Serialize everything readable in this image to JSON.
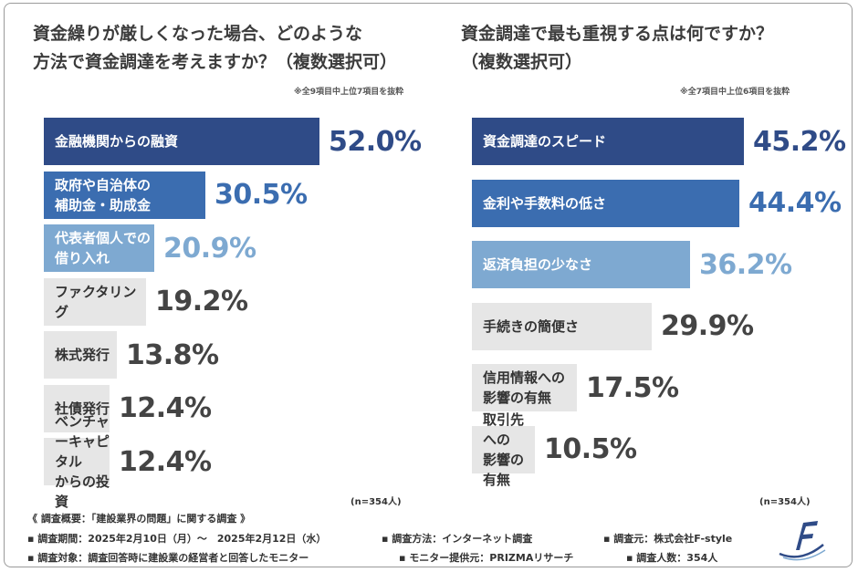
{
  "left_panel": {
    "title": "資金繰りが厳しくなった場合、どのような\n方法で資金調達を考えますか？（複数選択可）",
    "note": "※全9項目中上位7項目を抜粋",
    "n_label": "(n=354人)"
  },
  "right_panel": {
    "title": "資金調達で最も重視する点は何ですか？\n（複数選択可）",
    "note": "※全7項目中上位6項目を抜粋",
    "n_label": "(n=354人)"
  },
  "chart_data": [
    {
      "type": "bar",
      "orientation": "horizontal",
      "categories": [
        "金融機関からの融資",
        "政府や自治体の\n補助金・助成金",
        "代表者個人での\n借り入れ",
        "ファクタリング",
        "株式発行",
        "社債発行",
        "ベンチャーキャピタル\nからの投資"
      ],
      "values": [
        52.0,
        30.5,
        20.9,
        19.2,
        13.8,
        12.4,
        12.4
      ],
      "value_labels": [
        "52.0%",
        "30.5%",
        "20.9%",
        "19.2%",
        "13.8%",
        "12.4%",
        "12.4%"
      ],
      "unit": "%",
      "xlim": [
        0,
        52
      ],
      "grid": false,
      "colors": [
        "#2f4b87",
        "#3b6db0",
        "#7ea9d1",
        "#e6e6e6",
        "#e6e6e6",
        "#e6e6e6",
        "#e6e6e6"
      ],
      "value_colors": [
        "#2f4b87",
        "#3b6db0",
        "#7ea9d1",
        "#444444",
        "#444444",
        "#444444",
        "#444444"
      ],
      "label_colors": [
        "#ffffff",
        "#ffffff",
        "#ffffff",
        "#333333",
        "#333333",
        "#333333",
        "#333333"
      ]
    },
    {
      "type": "bar",
      "orientation": "horizontal",
      "categories": [
        "資金調達のスピード",
        "金利や手数料の低さ",
        "返済負担の少なさ",
        "手続きの簡便さ",
        "信用情報への\n影響の有無",
        "取引先への\n影響の有無"
      ],
      "values": [
        45.2,
        44.4,
        36.2,
        29.9,
        17.5,
        10.5
      ],
      "value_labels": [
        "45.2%",
        "44.4%",
        "36.2%",
        "29.9%",
        "17.5%",
        "10.5%"
      ],
      "unit": "%",
      "xlim": [
        0,
        45.2
      ],
      "grid": false,
      "colors": [
        "#2f4b87",
        "#3b6db0",
        "#7ea9d1",
        "#e6e6e6",
        "#e6e6e6",
        "#e6e6e6"
      ],
      "value_colors": [
        "#2f4b87",
        "#3b6db0",
        "#7ea9d1",
        "#444444",
        "#444444",
        "#444444"
      ],
      "label_colors": [
        "#ffffff",
        "#ffffff",
        "#ffffff",
        "#333333",
        "#333333",
        "#333333"
      ]
    }
  ],
  "footer": {
    "overview": "《 調査概要：「建設業界の問題」に関する調査 》",
    "period": "▪ 調査期間：2025年2月10日（月）〜　2025年2月12日（水）",
    "method": "▪ 調査方法：インターネット調査",
    "source": "▪ 調査元：株式会社F-style",
    "target": "▪ 調査対象：調査回答時に建設業の経営者と回答したモニター",
    "provider": "▪ モニター提供元：PRIZMAリサーチ",
    "count": "▪ 調査人数：354人"
  },
  "logo": {
    "icon": "f-style-logo-icon",
    "color": "#2f4b87"
  }
}
